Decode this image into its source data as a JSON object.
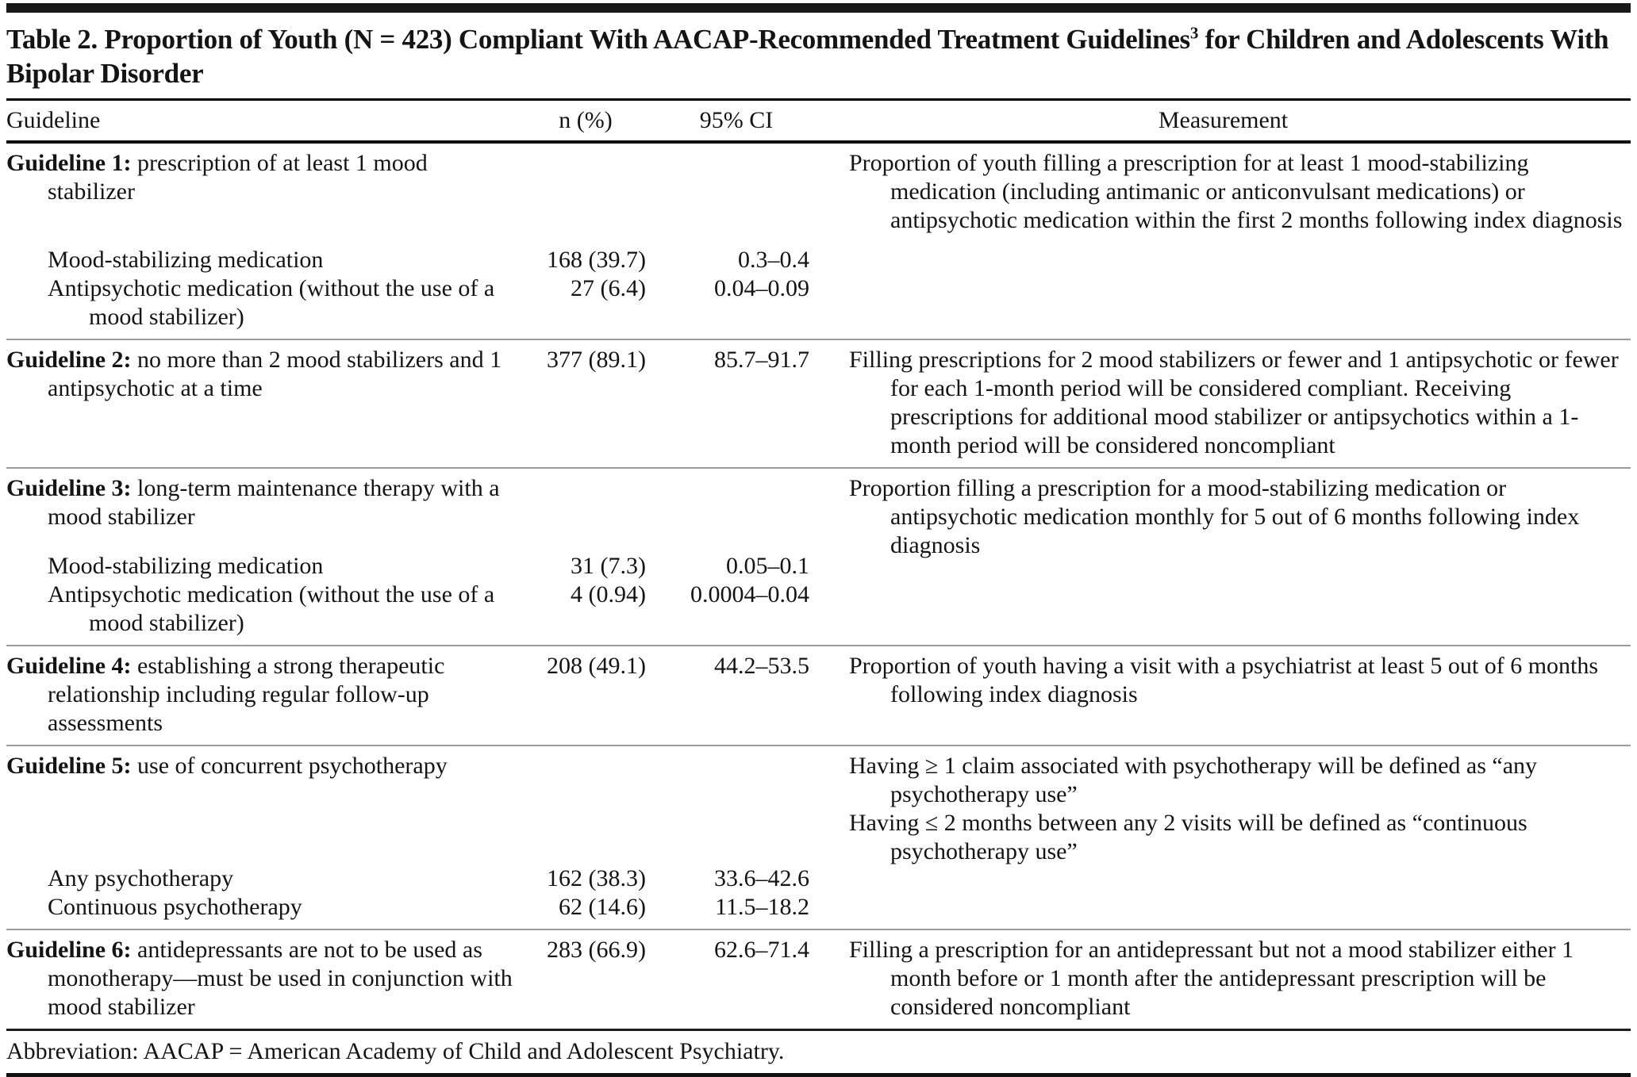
{
  "table": {
    "title_main": "Table 2. Proportion of Youth (N = 423) Compliant With AACAP-Recommended Treatment Guidelines",
    "title_sup": "3",
    "title_tail": " for Children and Adolescents With Bipolar Disorder",
    "columns": {
      "guideline": "Guideline",
      "n_pct": "n (%)",
      "ci": "95% CI",
      "measurement": "Measurement"
    },
    "sections": [
      {
        "label_bold": "Guideline 1:",
        "label_rest": " prescription of at least 1 mood stabilizer",
        "n": "",
        "ci": "",
        "measurement": "Proportion of youth filling a prescription for at least 1 mood-stabilizing medication (including antimanic or anticonvulsant medications) or antipsychotic medication within the first 2 months following index diagnosis",
        "subrows": [
          {
            "label": "Mood-stabilizing medication",
            "n": "168 (39.7)",
            "ci": "0.3–0.4"
          },
          {
            "label": "Antipsychotic medication (without the use of a mood stabilizer)",
            "n": "27 (6.4)",
            "ci": "0.04–0.09"
          }
        ]
      },
      {
        "label_bold": "Guideline 2:",
        "label_rest": " no more than 2 mood stabilizers and 1 antipsychotic at a time",
        "n": "377 (89.1)",
        "ci": "85.7–91.7",
        "measurement": "Filling prescriptions for 2 mood stabilizers or fewer and 1 antipsychotic or fewer for each 1-month period will be considered compliant. Receiving prescriptions for additional mood stabilizer or antipsychotics within a 1-month period will be considered noncompliant"
      },
      {
        "label_bold": "Guideline 3:",
        "label_rest": " long-term maintenance therapy with a mood stabilizer",
        "n": "",
        "ci": "",
        "measurement": "Proportion filling a prescription for a mood-stabilizing medication or antipsychotic medication monthly for 5 out of 6 months following index diagnosis",
        "subrows": [
          {
            "label": "Mood-stabilizing medication",
            "n": "31 (7.3)",
            "ci": "0.05–0.1"
          },
          {
            "label": "Antipsychotic medication (without the use of a mood stabilizer)",
            "n": "4 (0.94)",
            "ci": "0.0004–0.04"
          }
        ]
      },
      {
        "label_bold": "Guideline 4:",
        "label_rest": " establishing a strong therapeutic relationship including regular follow-up assessments",
        "n": "208 (49.1)",
        "ci": "44.2–53.5",
        "measurement": "Proportion of youth having a visit with a psychiatrist at least 5 out of 6 months following index diagnosis"
      },
      {
        "label_bold": "Guideline 5:",
        "label_rest": " use of concurrent psychotherapy",
        "n": "",
        "ci": "",
        "measurement": "Having ≥ 1 claim associated with psychotherapy will be defined as “any psychotherapy use”",
        "measurement2": "Having ≤ 2 months between any 2 visits will be defined as “continuous psychotherapy use”",
        "subrows": [
          {
            "label": "Any psychotherapy",
            "n": "162 (38.3)",
            "ci": "33.6–42.6"
          },
          {
            "label": "Continuous psychotherapy",
            "n": "62 (14.6)",
            "ci": "11.5–18.2"
          }
        ]
      },
      {
        "label_bold": "Guideline 6:",
        "label_rest": " antidepressants are not to be used as monotherapy—must be used in conjunction with mood stabilizer",
        "n": "283 (66.9)",
        "ci": "62.6–71.4",
        "measurement": "Filling a prescription for an antidepressant but not a mood stabilizer either 1 month before or 1 month after the antidepressant prescription will be considered noncompliant"
      }
    ],
    "footnote": "Abbreviation: AACAP = American Academy of Child and Adolescent Psychiatry."
  }
}
